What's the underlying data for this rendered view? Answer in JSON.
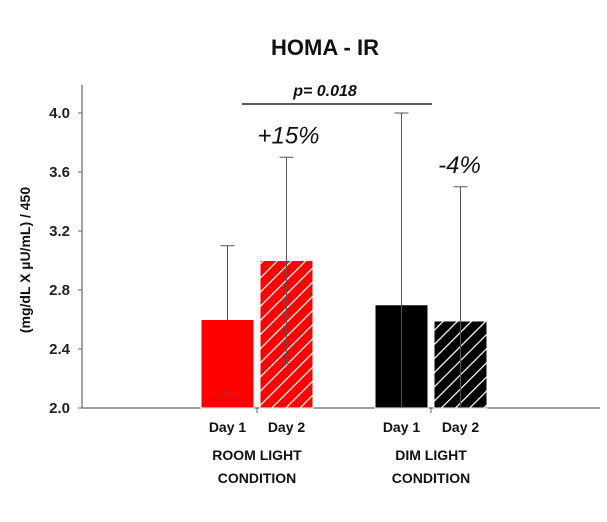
{
  "chart_data": {
    "type": "bar",
    "title": "HOMA - IR",
    "ylabel": "(mg/dL X µU/mL) / 450",
    "xlabel": "",
    "ylim": [
      2.0,
      4.0
    ],
    "yticks": [
      "2.0",
      "2.4",
      "2.8",
      "3.2",
      "3.6",
      "4.0"
    ],
    "grid": false,
    "groups": [
      {
        "line1": "ROOM LIGHT",
        "line2": "CONDITION",
        "color": "#ff0000",
        "change": "+15%",
        "bars": [
          {
            "label": "Day 1",
            "value": 2.6,
            "error": 0.5,
            "hatched": false
          },
          {
            "label": "Day 2",
            "value": 3.0,
            "error": 0.7,
            "hatched": true
          }
        ]
      },
      {
        "line1": "DIM LIGHT",
        "line2": "CONDITION",
        "color": "#000000",
        "change": "-4%",
        "bars": [
          {
            "label": "Day 1",
            "value": 2.7,
            "error": 1.3,
            "hatched": false
          },
          {
            "label": "Day 2",
            "value": 2.59,
            "error": 0.91,
            "hatched": true
          }
        ]
      }
    ],
    "annotation": "p= 0.018"
  }
}
